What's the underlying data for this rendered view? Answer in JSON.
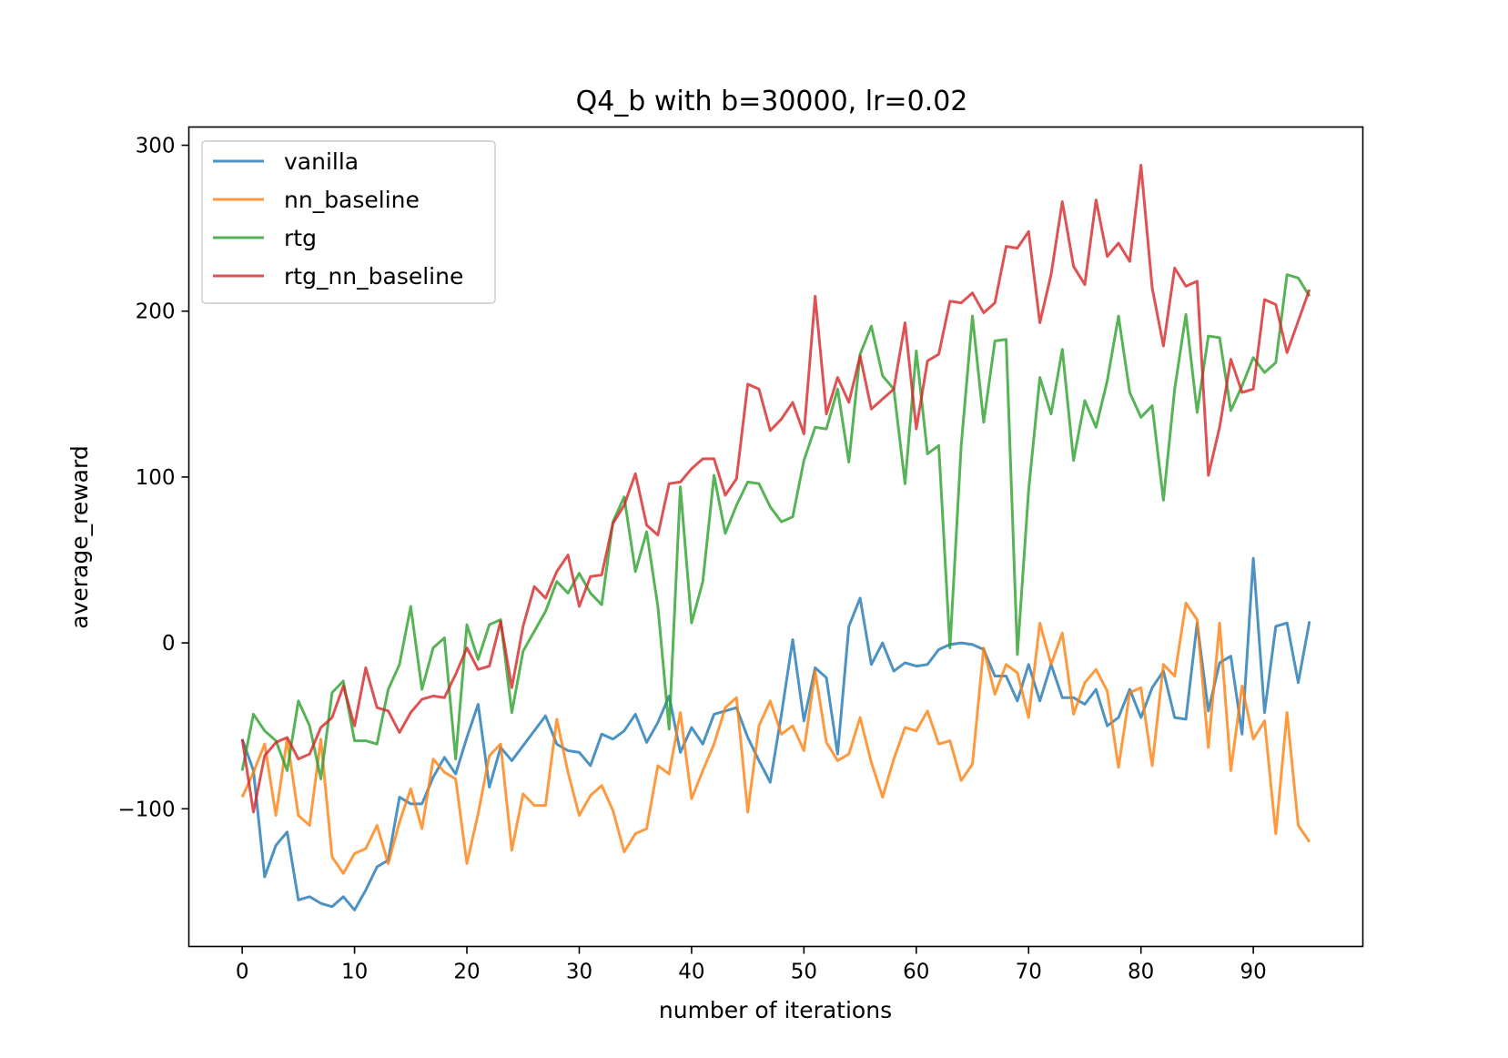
{
  "chart_data": {
    "type": "line",
    "title": "Q4_b with b=30000, lr=0.02",
    "xlabel": "number of iterations",
    "ylabel": "average_reward",
    "xlim": [
      -4.75,
      99.75
    ],
    "ylim": [
      -183,
      311
    ],
    "xticks": [
      0,
      10,
      20,
      30,
      40,
      50,
      60,
      70,
      80,
      90
    ],
    "yticks": [
      -100,
      0,
      100,
      200,
      300
    ],
    "grid": false,
    "legend_position": "upper left",
    "series": [
      {
        "name": "vanilla",
        "color": "#1f77b4",
        "values": [
          -58,
          -77,
          -141,
          -122,
          -114,
          -155,
          -153,
          -157,
          -159,
          -153,
          -161,
          -149,
          -135,
          -131,
          -93,
          -97,
          -97,
          -81,
          -69,
          -79,
          -57,
          -37,
          -87,
          -63,
          -71,
          -62,
          -53,
          -44,
          -61,
          -65,
          -66,
          -74,
          -55,
          -58,
          -53,
          -43,
          -60,
          -48,
          -32,
          -66,
          -51,
          -61,
          -43,
          -41,
          -39,
          -57,
          -71,
          -84,
          -43,
          2,
          -47,
          -15,
          -21,
          -67,
          10,
          27,
          -13,
          0,
          -17,
          -12,
          -14,
          -13,
          -4,
          -1,
          0,
          -1,
          -4,
          -20,
          -20,
          -35,
          -13,
          -35,
          -13,
          -33,
          -33,
          -37,
          -28,
          -50,
          -45,
          -28,
          -45,
          -27,
          -17,
          -45,
          -46,
          12,
          -41,
          -12,
          -8,
          -55,
          51,
          -42,
          10,
          12,
          -24,
          13
        ]
      },
      {
        "name": "nn_baseline",
        "color": "#ff7f0e",
        "values": [
          -93,
          -78,
          -61,
          -104,
          -58,
          -104,
          -110,
          -58,
          -129,
          -139,
          -127,
          -124,
          -110,
          -133,
          -108,
          -88,
          -112,
          -70,
          -78,
          -82,
          -133,
          -103,
          -68,
          -61,
          -125,
          -91,
          -98,
          -98,
          -46,
          -78,
          -104,
          -92,
          -86,
          -101,
          -126,
          -115,
          -112,
          -74,
          -79,
          -42,
          -94,
          -77,
          -61,
          -39,
          -33,
          -102,
          -50,
          -35,
          -55,
          -50,
          -65,
          -17,
          -60,
          -71,
          -67,
          -45,
          -72,
          -93,
          -70,
          -51,
          -53,
          -41,
          -61,
          -59,
          -83,
          -73,
          -3,
          -31,
          -13,
          -18,
          -45,
          12,
          -13,
          6,
          -43,
          -24,
          -16,
          -29,
          -75,
          -30,
          -27,
          -74,
          -13,
          -20,
          24,
          14,
          -63,
          12,
          -77,
          -26,
          -58,
          -47,
          -115,
          -42,
          -110,
          -120
        ]
      },
      {
        "name": "rtg",
        "color": "#2ca02c",
        "values": [
          -77,
          -43,
          -53,
          -59,
          -77,
          -35,
          -50,
          -82,
          -30,
          -23,
          -59,
          -59,
          -61,
          -28,
          -13,
          22,
          -28,
          -3,
          3,
          -70,
          11,
          -10,
          11,
          14,
          -42,
          -5,
          7,
          19,
          37,
          30,
          42,
          30,
          23,
          73,
          88,
          43,
          67,
          22,
          -52,
          94,
          12,
          37,
          101,
          66,
          83,
          97,
          96,
          82,
          73,
          76,
          110,
          130,
          129,
          153,
          109,
          174,
          191,
          161,
          153,
          96,
          176,
          114,
          119,
          -3,
          119,
          197,
          133,
          182,
          183,
          -7,
          92,
          160,
          138,
          177,
          110,
          146,
          130,
          158,
          197,
          151,
          136,
          143,
          86,
          153,
          198,
          139,
          185,
          184,
          140,
          155,
          172,
          163,
          169,
          222,
          220,
          209
        ]
      },
      {
        "name": "rtg_nn_baseline",
        "color": "#d62728",
        "values": [
          -58,
          -102,
          -68,
          -60,
          -57,
          -70,
          -67,
          -51,
          -45,
          -26,
          -50,
          -15,
          -39,
          -41,
          -54,
          -42,
          -34,
          -32,
          -33,
          -19,
          -3,
          -16,
          -14,
          13,
          -27,
          10,
          34,
          27,
          43,
          53,
          22,
          40,
          41,
          72,
          83,
          102,
          71,
          65,
          96,
          97,
          105,
          111,
          111,
          89,
          99,
          156,
          153,
          128,
          135,
          145,
          126,
          209,
          138,
          160,
          145,
          173,
          141,
          147,
          153,
          193,
          129,
          170,
          174,
          206,
          205,
          211,
          199,
          205,
          239,
          238,
          248,
          193,
          222,
          266,
          227,
          216,
          267,
          233,
          241,
          230,
          288,
          214,
          179,
          226,
          215,
          218,
          101,
          130,
          171,
          151,
          153,
          207,
          204,
          175,
          194,
          213
        ]
      }
    ]
  }
}
